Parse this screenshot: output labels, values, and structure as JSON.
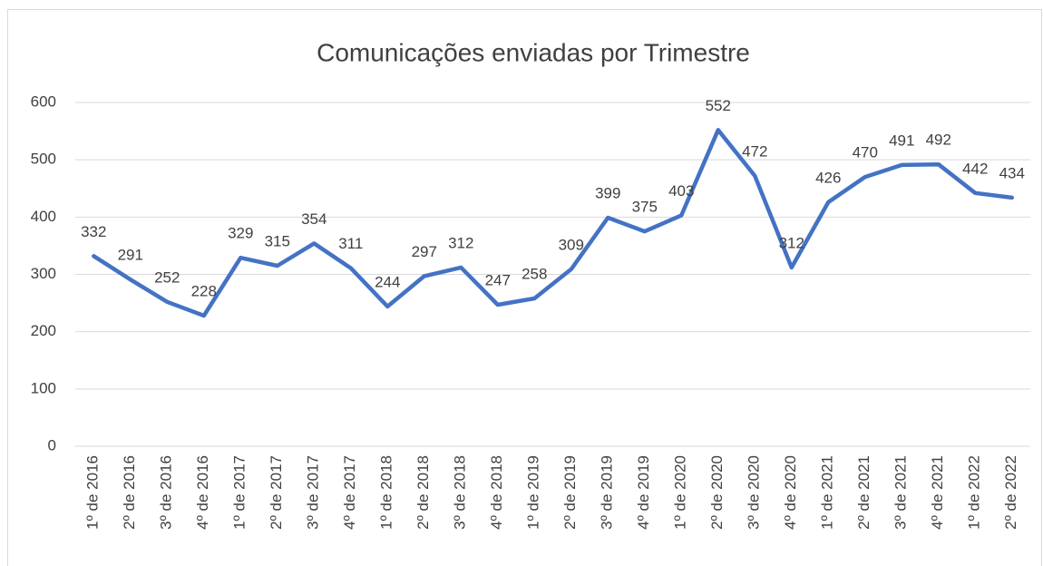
{
  "chart_data": {
    "type": "line",
    "title": "Comunicações enviadas por Trimestre",
    "categories": [
      "1º de 2016",
      "2º de 2016",
      "3º de 2016",
      "4º de 2016",
      "1º de 2017",
      "2º de 2017",
      "3º de 2017",
      "4º de 2017",
      "1º de 2018",
      "2º de 2018",
      "3º de 2018",
      "4º de 2018",
      "1º de 2019",
      "2º de 2019",
      "3º de 2019",
      "4º de 2019",
      "1º de 2020",
      "2º de 2020",
      "3º de 2020",
      "4º de 2020",
      "1º de 2021",
      "2º de 2021",
      "3º de 2021",
      "4º de 2021",
      "1º de 2022",
      "2º de 2022"
    ],
    "values": [
      332,
      291,
      252,
      228,
      329,
      315,
      354,
      311,
      244,
      297,
      312,
      247,
      258,
      309,
      399,
      375,
      403,
      552,
      472,
      312,
      426,
      470,
      491,
      492,
      442,
      434
    ],
    "color": "#4472c4",
    "ylim": [
      0,
      600
    ],
    "yticks": [
      0,
      100,
      200,
      300,
      400,
      500,
      600
    ],
    "grid": true
  }
}
